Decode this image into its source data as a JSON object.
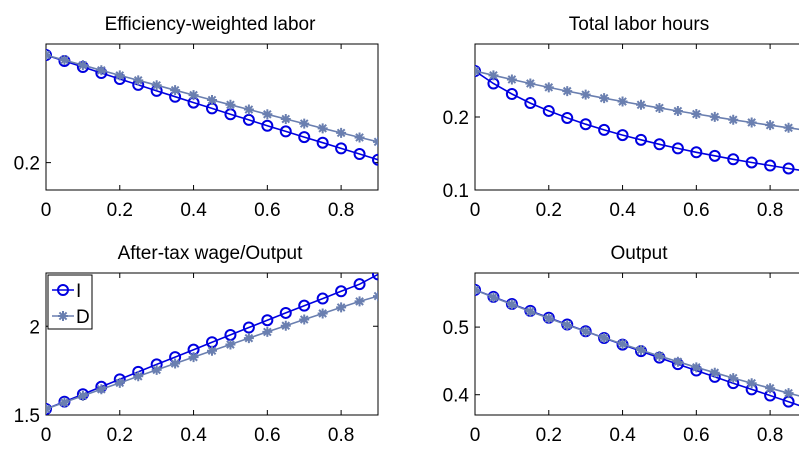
{
  "chart_data": [
    {
      "type": "line",
      "title": "Efficiency-weighted labor",
      "xlabel": "",
      "ylabel": "",
      "xlim": [
        0,
        0.9
      ],
      "ylim": [
        0.185,
        0.265
      ],
      "xticks": [
        0,
        0.2,
        0.4,
        0.6,
        0.8
      ],
      "yticks": [
        0.2
      ],
      "x": [
        0,
        0.05,
        0.1,
        0.15,
        0.2,
        0.25,
        0.3,
        0.35,
        0.4,
        0.45,
        0.5,
        0.55,
        0.6,
        0.65,
        0.7,
        0.75,
        0.8,
        0.85,
        0.9
      ],
      "series": [
        {
          "name": "I",
          "marker": "circle",
          "color": "#0000e0",
          "values": [
            0.259,
            0.2557,
            0.2524,
            0.2491,
            0.2458,
            0.2426,
            0.2393,
            0.2361,
            0.2329,
            0.2297,
            0.2265,
            0.2234,
            0.2202,
            0.2171,
            0.214,
            0.2109,
            0.2078,
            0.2047,
            0.2016
          ]
        },
        {
          "name": "D",
          "marker": "asterisk",
          "color": "#6a7fb0",
          "values": [
            0.259,
            0.2562,
            0.2534,
            0.2506,
            0.2478,
            0.2451,
            0.2424,
            0.2397,
            0.237,
            0.2343,
            0.2317,
            0.2291,
            0.2265,
            0.2239,
            0.2214,
            0.2188,
            0.2163,
            0.2138,
            0.2114
          ]
        }
      ],
      "grid": false,
      "legend": null
    },
    {
      "type": "line",
      "title": "Total labor hours",
      "xlabel": "",
      "ylabel": "",
      "xlim": [
        0,
        0.9
      ],
      "ylim": [
        0.1,
        0.3
      ],
      "xticks": [
        0,
        0.2,
        0.4,
        0.6,
        0.8
      ],
      "yticks": [
        0.1,
        0.2
      ],
      "x": [
        0,
        0.05,
        0.1,
        0.15,
        0.2,
        0.25,
        0.3,
        0.35,
        0.4,
        0.45,
        0.5,
        0.55,
        0.6,
        0.65,
        0.7,
        0.75,
        0.8,
        0.85,
        0.9
      ],
      "series": [
        {
          "name": "I",
          "marker": "circle",
          "color": "#0000e0",
          "values": [
            0.263,
            0.2459,
            0.2315,
            0.2191,
            0.2083,
            0.1987,
            0.1901,
            0.1823,
            0.1752,
            0.1687,
            0.1626,
            0.157,
            0.1517,
            0.1468,
            0.1421,
            0.1377,
            0.1335,
            0.1295,
            0.1257
          ]
        },
        {
          "name": "D",
          "marker": "asterisk",
          "color": "#6a7fb0",
          "values": [
            0.263,
            0.2571,
            0.2514,
            0.2459,
            0.2406,
            0.2355,
            0.2306,
            0.2258,
            0.2212,
            0.2167,
            0.2124,
            0.2082,
            0.2041,
            0.2001,
            0.1962,
            0.1925,
            0.1888,
            0.1852,
            0.1817
          ]
        }
      ],
      "grid": false,
      "legend": null
    },
    {
      "type": "line",
      "title": "After-tax wage/Output",
      "xlabel": "",
      "ylabel": "",
      "xlim": [
        0,
        0.9
      ],
      "ylim": [
        1.5,
        2.3
      ],
      "xticks": [
        0,
        0.2,
        0.4,
        0.6,
        0.8
      ],
      "yticks": [
        1.5,
        2
      ],
      "x": [
        0,
        0.05,
        0.1,
        0.15,
        0.2,
        0.25,
        0.3,
        0.35,
        0.4,
        0.45,
        0.5,
        0.55,
        0.6,
        0.65,
        0.7,
        0.75,
        0.8,
        0.85,
        0.9
      ],
      "series": [
        {
          "name": "I",
          "marker": "circle",
          "color": "#0000e0",
          "values": [
            1.534,
            1.575,
            1.617,
            1.659,
            1.701,
            1.743,
            1.785,
            1.826,
            1.868,
            1.91,
            1.951,
            1.993,
            2.034,
            2.075,
            2.116,
            2.156,
            2.197,
            2.237,
            2.292
          ]
        },
        {
          "name": "D",
          "marker": "asterisk",
          "color": "#6a7fb0",
          "values": [
            1.534,
            1.571,
            1.608,
            1.645,
            1.681,
            1.718,
            1.754,
            1.79,
            1.826,
            1.862,
            1.897,
            1.933,
            1.968,
            2.003,
            2.038,
            2.072,
            2.106,
            2.14,
            2.17
          ]
        }
      ],
      "grid": false,
      "legend": {
        "location": "top-left",
        "entries": [
          {
            "label": "I",
            "marker": "circle",
            "color": "#0000e0"
          },
          {
            "label": "D",
            "marker": "asterisk",
            "color": "#6a7fb0"
          }
        ]
      }
    },
    {
      "type": "line",
      "title": "Output",
      "xlabel": "",
      "ylabel": "",
      "xlim": [
        0,
        0.9
      ],
      "ylim": [
        0.37,
        0.58
      ],
      "xticks": [
        0,
        0.2,
        0.4,
        0.6,
        0.8
      ],
      "yticks": [
        0.4,
        0.5
      ],
      "x": [
        0,
        0.05,
        0.1,
        0.15,
        0.2,
        0.25,
        0.3,
        0.35,
        0.4,
        0.45,
        0.5,
        0.55,
        0.6,
        0.65,
        0.7,
        0.75,
        0.8,
        0.85,
        0.9
      ],
      "series": [
        {
          "name": "I",
          "marker": "circle",
          "color": "#0000e0",
          "values": [
            0.555,
            0.5446,
            0.5342,
            0.524,
            0.5138,
            0.5038,
            0.4938,
            0.4839,
            0.4741,
            0.4644,
            0.4548,
            0.4452,
            0.4358,
            0.4264,
            0.4171,
            0.4079,
            0.3988,
            0.3897,
            0.38
          ]
        },
        {
          "name": "D",
          "marker": "asterisk",
          "color": "#6a7fb0",
          "values": [
            0.555,
            0.5441,
            0.5335,
            0.5231,
            0.513,
            0.5031,
            0.4935,
            0.4841,
            0.4749,
            0.466,
            0.4573,
            0.4488,
            0.4405,
            0.4325,
            0.4246,
            0.417,
            0.4096,
            0.4023,
            0.3953
          ]
        }
      ],
      "grid": false,
      "legend": null
    }
  ]
}
